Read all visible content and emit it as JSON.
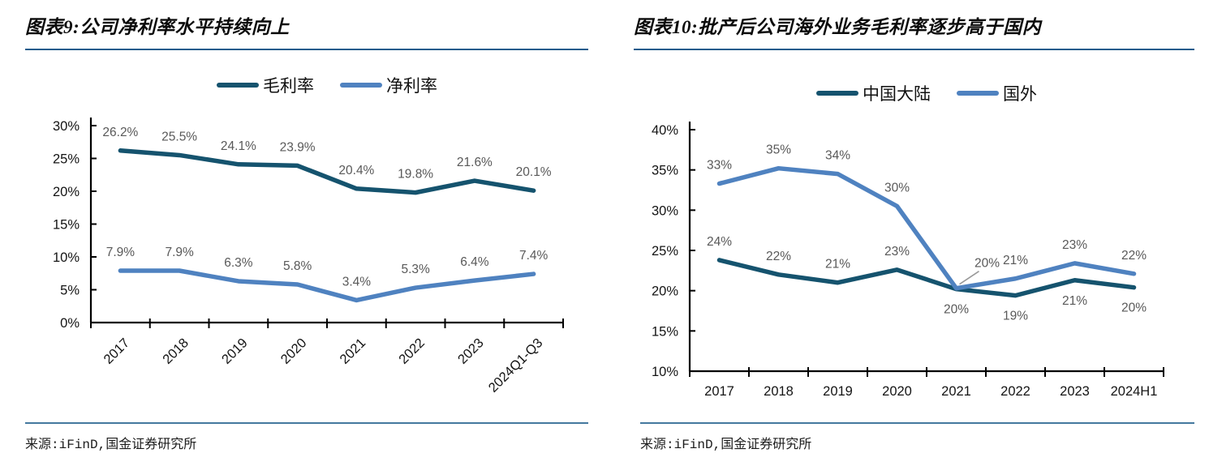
{
  "panels": [
    {
      "title": "图表9:公司净利率水平持续向上",
      "source": "来源:iFinD,国金证券研究所"
    },
    {
      "title": "图表10:批产后公司海外业务毛利率逐步高于国内",
      "source": "来源:iFinD,国金证券研究所"
    }
  ],
  "colors": {
    "dark_series": "#15536E",
    "light_series": "#4F82C0",
    "axis": "#000000",
    "data_label": "#595959",
    "title_rule": "#1D5C8C",
    "source_rule": "#44789E",
    "callout_leader": "#999999"
  },
  "chart_data": [
    {
      "type": "line",
      "title": "公司净利率水平持续向上",
      "categories": [
        "2017",
        "2018",
        "2019",
        "2020",
        "2021",
        "2022",
        "2023",
        "2024Q1-Q3"
      ],
      "series": [
        {
          "name": "毛利率",
          "color": "#15536E",
          "values": [
            26.2,
            25.5,
            24.1,
            23.9,
            20.4,
            19.8,
            21.6,
            20.1
          ],
          "labels": [
            "26.2%",
            "25.5%",
            "24.1%",
            "23.9%",
            "20.4%",
            "19.8%",
            "21.6%",
            "20.1%"
          ],
          "label_pos": "above"
        },
        {
          "name": "净利率",
          "color": "#4F82C0",
          "values": [
            7.9,
            7.9,
            6.3,
            5.8,
            3.4,
            5.3,
            6.4,
            7.4
          ],
          "labels": [
            "7.9%",
            "7.9%",
            "6.3%",
            "5.8%",
            "3.4%",
            "5.3%",
            "6.4%",
            "7.4%"
          ],
          "label_pos": "above"
        }
      ],
      "ylim": [
        0,
        30
      ],
      "yticks": [
        0,
        5,
        10,
        15,
        20,
        25,
        30
      ],
      "ytick_labels": [
        "0%",
        "5%",
        "10%",
        "15%",
        "20%",
        "25%",
        "30%"
      ],
      "x_label_rotation": -45,
      "legend_position": "top",
      "grid": false
    },
    {
      "type": "line",
      "title": "批产后公司海外业务毛利率逐步高于国内",
      "categories": [
        "2017",
        "2018",
        "2019",
        "2020",
        "2021",
        "2022",
        "2023",
        "2024H1"
      ],
      "series": [
        {
          "name": "中国大陆",
          "color": "#15536E",
          "values": [
            24,
            22,
            21,
            23,
            20,
            19,
            21,
            20
          ],
          "plot_values": [
            23.8,
            22.0,
            21.0,
            22.6,
            20.2,
            19.4,
            21.3,
            20.4
          ],
          "labels": [
            "24%",
            "22%",
            "21%",
            "23%",
            "20%",
            "19%",
            "21%",
            "20%"
          ],
          "label_pos": [
            "above",
            "above",
            "above",
            "above",
            "below",
            "below",
            "below",
            "below"
          ]
        },
        {
          "name": "国外",
          "color": "#4F82C0",
          "values": [
            33,
            35,
            34,
            30,
            20,
            21,
            23,
            22
          ],
          "plot_values": [
            33.3,
            35.2,
            34.5,
            30.5,
            20.3,
            21.5,
            23.4,
            22.1
          ],
          "labels": [
            "33%",
            "35%",
            "34%",
            "30%",
            "20%",
            "21%",
            "23%",
            "22%"
          ],
          "label_pos": [
            "above",
            "above",
            "above",
            "above",
            "callout",
            "above",
            "above",
            "above"
          ]
        }
      ],
      "ylim": [
        10,
        40
      ],
      "yticks": [
        10,
        15,
        20,
        25,
        30,
        35,
        40
      ],
      "ytick_labels": [
        "10%",
        "15%",
        "20%",
        "25%",
        "30%",
        "35%",
        "40%"
      ],
      "x_label_rotation": 0,
      "legend_position": "top",
      "grid": false,
      "callout_color": "#999999"
    }
  ]
}
